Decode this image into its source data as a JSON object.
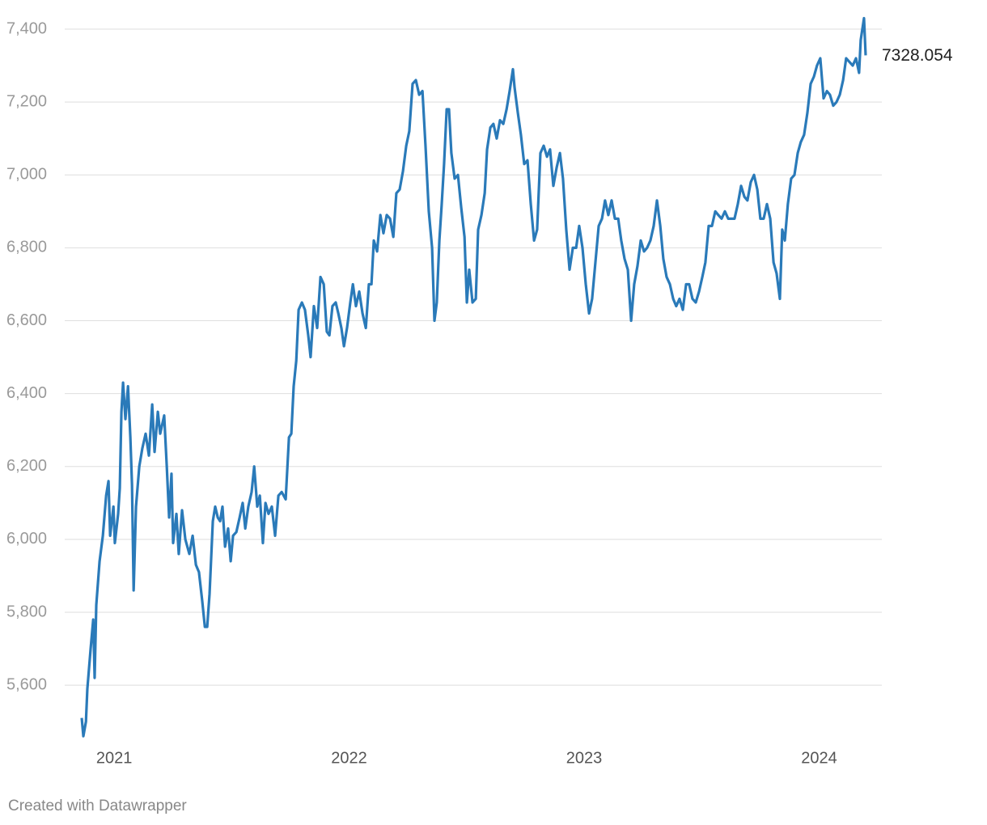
{
  "chart_data": {
    "type": "line",
    "color": "#2a7ab9",
    "grid": true,
    "xlim": [
      2020.862,
      2024.198
    ],
    "xticks": [
      2021,
      2022,
      2023,
      2024
    ],
    "ylim": [
      5450,
      7450
    ],
    "yticks": [
      {
        "value": 5600,
        "label": "5,600"
      },
      {
        "value": 5800,
        "label": "5,800"
      },
      {
        "value": 6000,
        "label": "6,000"
      },
      {
        "value": 6200,
        "label": "6,200"
      },
      {
        "value": 6400,
        "label": "6,400"
      },
      {
        "value": 6600,
        "label": "6,600"
      },
      {
        "value": 6800,
        "label": "6,800"
      },
      {
        "value": 7000,
        "label": "7,000"
      },
      {
        "value": 7200,
        "label": "7,200"
      },
      {
        "value": 7400,
        "label": "7,400"
      }
    ],
    "x": [
      2020.862,
      2020.869,
      2020.88,
      2020.886,
      2020.9,
      2020.911,
      2020.917,
      2020.924,
      2020.938,
      2020.952,
      2020.966,
      2020.976,
      2020.983,
      2020.997,
      2021.003,
      2021.017,
      2021.024,
      2021.031,
      2021.038,
      2021.048,
      2021.059,
      2021.069,
      2021.076,
      2021.083,
      2021.093,
      2021.107,
      2021.12,
      2021.134,
      2021.148,
      2021.162,
      2021.172,
      2021.186,
      2021.196,
      2021.213,
      2021.224,
      2021.234,
      2021.244,
      2021.251,
      2021.265,
      2021.275,
      2021.289,
      2021.303,
      2021.32,
      2021.334,
      2021.348,
      2021.361,
      2021.375,
      2021.386,
      2021.396,
      2021.406,
      2021.42,
      2021.43,
      2021.441,
      2021.451,
      2021.461,
      2021.472,
      2021.485,
      2021.496,
      2021.506,
      2021.52,
      2021.534,
      2021.547,
      2021.558,
      2021.571,
      2021.585,
      2021.596,
      2021.609,
      2021.62,
      2021.633,
      2021.644,
      2021.657,
      2021.671,
      2021.685,
      2021.699,
      2021.713,
      2021.73,
      2021.744,
      2021.754,
      2021.764,
      2021.775,
      2021.785,
      2021.799,
      2021.812,
      2021.826,
      2021.836,
      2021.85,
      2021.864,
      2021.878,
      2021.892,
      2021.905,
      2021.916,
      2021.929,
      2021.943,
      2021.954,
      2021.967,
      2021.978,
      2021.991,
      2022.005,
      2022.016,
      2022.029,
      2022.043,
      2022.057,
      2022.071,
      2022.084,
      2022.095,
      2022.105,
      2022.119,
      2022.133,
      2022.146,
      2022.16,
      2022.174,
      2022.188,
      2022.201,
      2022.215,
      2022.229,
      2022.243,
      2022.256,
      2022.27,
      2022.284,
      2022.298,
      2022.312,
      2022.325,
      2022.339,
      2022.353,
      2022.363,
      2022.373,
      2022.384,
      2022.394,
      2022.404,
      2022.415,
      2022.425,
      2022.435,
      2022.449,
      2022.463,
      2022.477,
      2022.491,
      2022.501,
      2022.511,
      2022.525,
      2022.539,
      2022.549,
      2022.563,
      2022.577,
      2022.587,
      2022.601,
      2022.614,
      2022.628,
      2022.642,
      2022.656,
      2022.67,
      2022.683,
      2022.697,
      2022.704,
      2022.718,
      2022.731,
      2022.745,
      2022.759,
      2022.773,
      2022.787,
      2022.8,
      2022.814,
      2022.828,
      2022.842,
      2022.855,
      2022.869,
      2022.883,
      2022.897,
      2022.91,
      2022.924,
      2022.938,
      2022.952,
      2022.966,
      2022.979,
      2022.993,
      2023.007,
      2023.021,
      2023.034,
      2023.048,
      2023.062,
      2023.076,
      2023.089,
      2023.103,
      2023.117,
      2023.131,
      2023.145,
      2023.158,
      2023.172,
      2023.186,
      2023.2,
      2023.213,
      2023.227,
      2023.241,
      2023.255,
      2023.268,
      2023.282,
      2023.296,
      2023.31,
      2023.324,
      2023.337,
      2023.351,
      2023.365,
      2023.379,
      2023.392,
      2023.406,
      2023.42,
      2023.434,
      2023.447,
      2023.461,
      2023.475,
      2023.489,
      2023.503,
      2023.516,
      2023.53,
      2023.544,
      2023.558,
      2023.571,
      2023.585,
      2023.599,
      2023.613,
      2023.627,
      2023.64,
      2023.654,
      2023.668,
      2023.682,
      2023.695,
      2023.709,
      2023.723,
      2023.737,
      2023.75,
      2023.764,
      2023.778,
      2023.792,
      2023.806,
      2023.819,
      2023.833,
      2023.843,
      2023.854,
      2023.867,
      2023.881,
      2023.895,
      2023.909,
      2023.922,
      2023.936,
      2023.95,
      2023.964,
      2023.978,
      2023.991,
      2024.005,
      2024.019,
      2024.033,
      2024.046,
      2024.06,
      2024.074,
      2024.088,
      2024.102,
      2024.115,
      2024.129,
      2024.143,
      2024.157,
      2024.17,
      2024.177,
      2024.191,
      2024.198
    ],
    "values": [
      5510,
      5460,
      5500,
      5590,
      5700,
      5780,
      5620,
      5820,
      5940,
      6010,
      6120,
      6160,
      6010,
      6090,
      5990,
      6070,
      6140,
      6350,
      6430,
      6330,
      6420,
      6280,
      6150,
      5860,
      6090,
      6200,
      6250,
      6290,
      6230,
      6370,
      6240,
      6350,
      6290,
      6340,
      6200,
      6060,
      6180,
      5990,
      6070,
      5960,
      6080,
      6000,
      5960,
      6010,
      5930,
      5910,
      5830,
      5760,
      5760,
      5850,
      6050,
      6090,
      6060,
      6050,
      6090,
      5980,
      6030,
      5940,
      6010,
      6020,
      6060,
      6100,
      6030,
      6090,
      6130,
      6200,
      6090,
      6120,
      5990,
      6100,
      6070,
      6090,
      6010,
      6120,
      6130,
      6110,
      6280,
      6290,
      6420,
      6490,
      6630,
      6650,
      6630,
      6560,
      6500,
      6640,
      6580,
      6720,
      6700,
      6570,
      6560,
      6640,
      6650,
      6620,
      6580,
      6530,
      6580,
      6650,
      6700,
      6640,
      6680,
      6620,
      6580,
      6700,
      6700,
      6820,
      6790,
      6890,
      6840,
      6890,
      6880,
      6830,
      6950,
      6960,
      7010,
      7080,
      7120,
      7250,
      7260,
      7220,
      7230,
      7080,
      6900,
      6800,
      6600,
      6650,
      6820,
      6920,
      7030,
      7180,
      7180,
      7060,
      6990,
      7000,
      6910,
      6830,
      6650,
      6740,
      6650,
      6660,
      6850,
      6890,
      6950,
      7070,
      7130,
      7140,
      7100,
      7150,
      7140,
      7180,
      7230,
      7290,
      7240,
      7170,
      7110,
      7030,
      7040,
      6920,
      6820,
      6850,
      7060,
      7080,
      7050,
      7070,
      6970,
      7020,
      7060,
      6990,
      6850,
      6740,
      6800,
      6800,
      6860,
      6800,
      6700,
      6620,
      6660,
      6760,
      6860,
      6880,
      6930,
      6890,
      6930,
      6880,
      6880,
      6820,
      6770,
      6740,
      6600,
      6700,
      6750,
      6820,
      6790,
      6800,
      6820,
      6860,
      6930,
      6860,
      6770,
      6720,
      6700,
      6660,
      6640,
      6660,
      6630,
      6700,
      6700,
      6660,
      6650,
      6680,
      6720,
      6760,
      6860,
      6860,
      6900,
      6890,
      6880,
      6900,
      6880,
      6880,
      6880,
      6920,
      6970,
      6940,
      6930,
      6980,
      7000,
      6960,
      6880,
      6880,
      6920,
      6880,
      6760,
      6730,
      6660,
      6850,
      6820,
      6920,
      6990,
      7000,
      7060,
      7090,
      7110,
      7170,
      7250,
      7270,
      7300,
      7320,
      7210,
      7230,
      7220,
      7190,
      7200,
      7220,
      7260,
      7320,
      7310,
      7300,
      7320,
      7280,
      7370,
      7430,
      7328.054
    ]
  },
  "footer": "Created with Datawrapper"
}
